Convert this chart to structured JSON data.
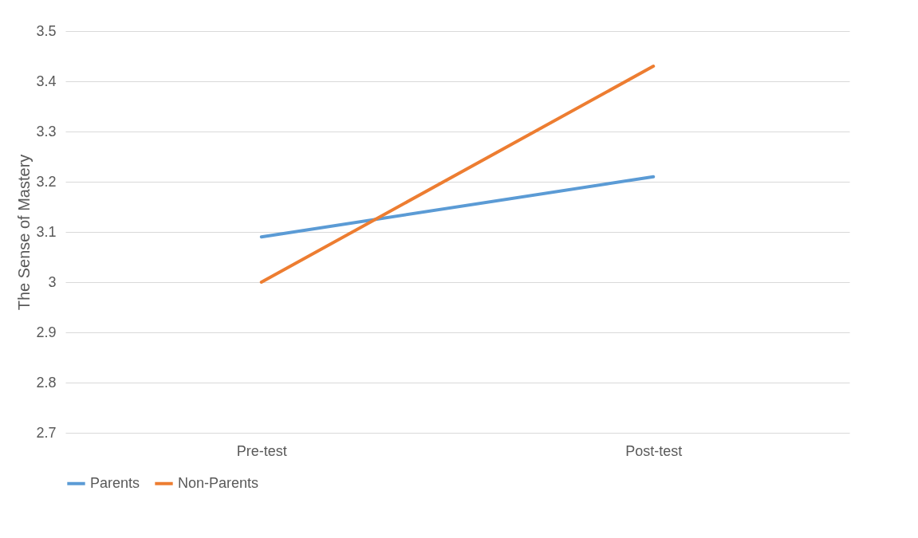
{
  "chart_data": {
    "type": "line",
    "ylabel": "The Sense of Mastery",
    "categories": [
      "Pre-test",
      "Post-test"
    ],
    "series": [
      {
        "name": "Parents",
        "color": "#5b9bd5",
        "values": [
          3.09,
          3.21
        ]
      },
      {
        "name": "Non-Parents",
        "color": "#ed7d31",
        "values": [
          3.0,
          3.43
        ]
      }
    ],
    "ylim": [
      2.7,
      3.5
    ],
    "yticks": [
      2.7,
      2.8,
      2.9,
      3,
      3.1,
      3.2,
      3.3,
      3.4,
      3.5
    ],
    "grid": "y",
    "legend": "bottom",
    "marker": "none",
    "line_style": "solid"
  }
}
